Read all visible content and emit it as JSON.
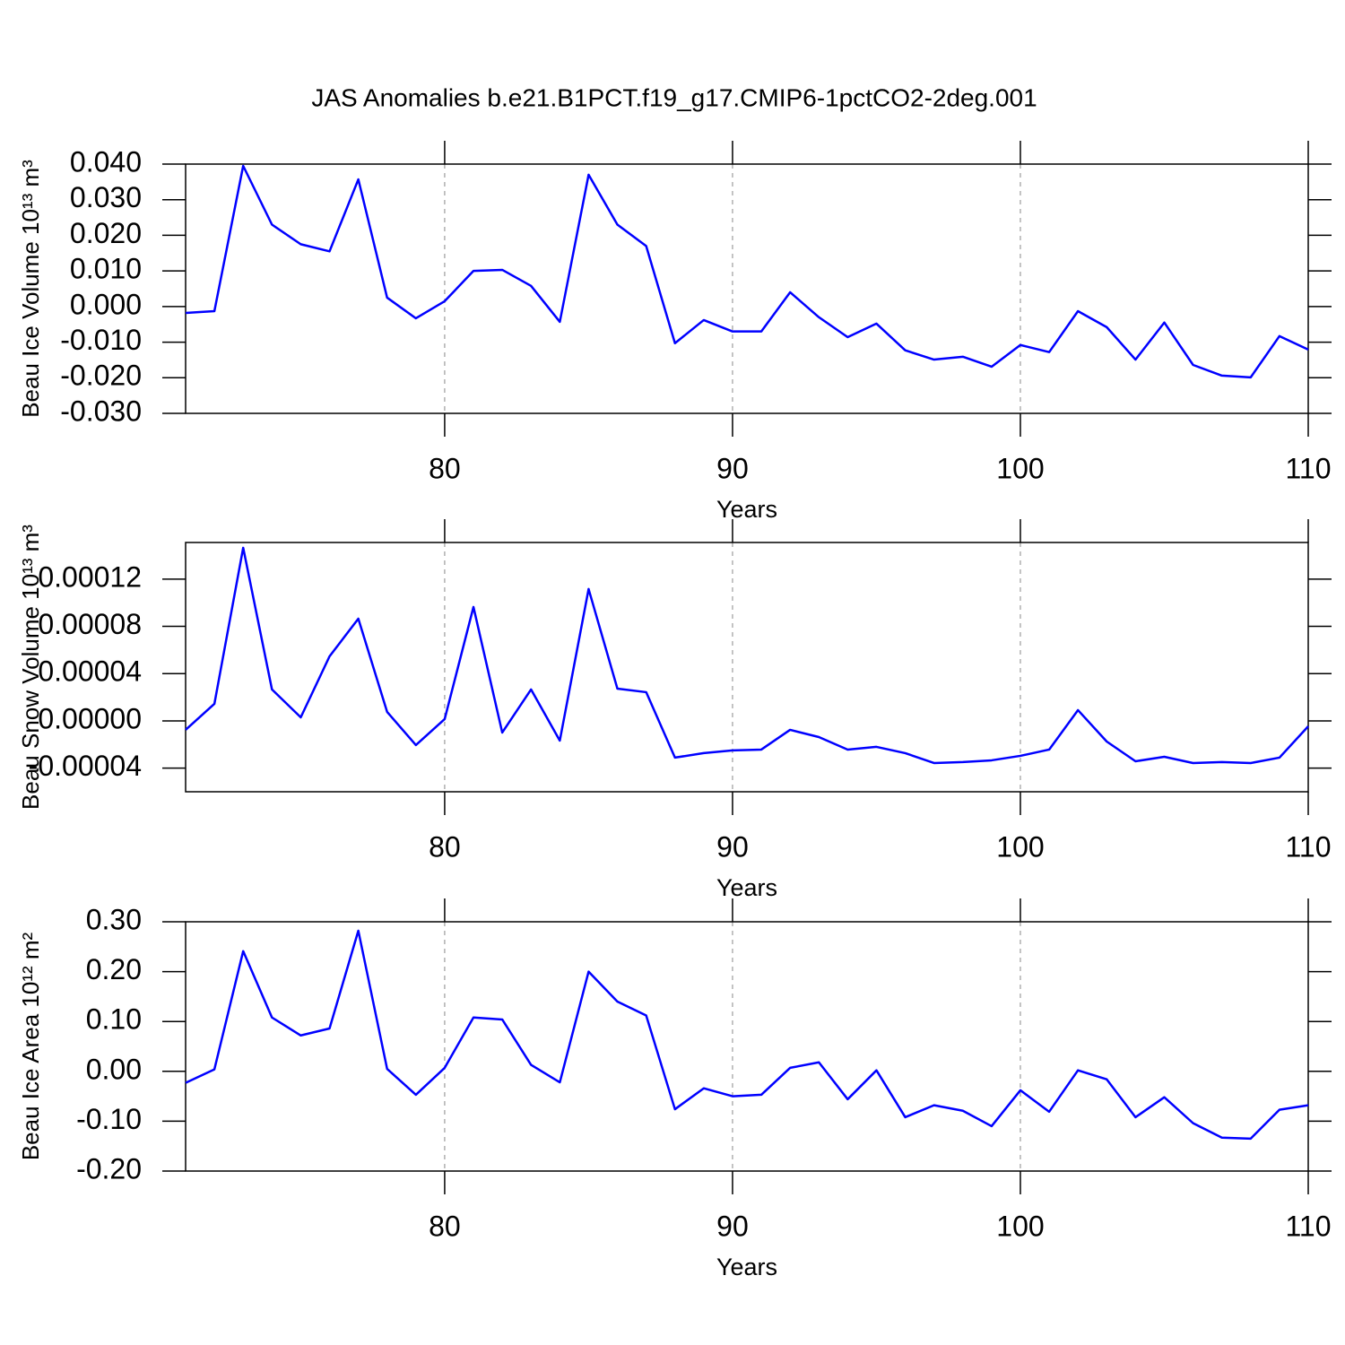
{
  "chart_data": [
    {
      "type": "line",
      "title": "JAS Anomalies b.e21.B1PCT.f19_g17.CMIP6-1pctCO2-2deg.001",
      "xlabel": "Years",
      "ylabel": "Beau Ice Volume 10¹³ m³",
      "color": "#0000ff",
      "grid": true,
      "x": [
        71,
        72,
        73,
        74,
        75,
        76,
        77,
        78,
        79,
        80,
        81,
        82,
        83,
        84,
        85,
        86,
        87,
        88,
        89,
        90,
        91,
        92,
        93,
        94,
        95,
        96,
        97,
        98,
        99,
        100,
        101,
        102,
        103,
        104,
        105,
        106,
        107,
        108,
        109,
        110
      ],
      "values": [
        -0.0018,
        -0.0013,
        0.0395,
        0.023,
        0.0175,
        0.0155,
        0.0357,
        0.0025,
        -0.0033,
        0.0015,
        0.01,
        0.0103,
        0.0058,
        -0.0043,
        0.037,
        0.023,
        0.017,
        -0.0103,
        -0.0038,
        -0.007,
        -0.007,
        0.004,
        -0.003,
        -0.0086,
        -0.0048,
        -0.0123,
        -0.0149,
        -0.0141,
        -0.0169,
        -0.0108,
        -0.0128,
        -0.0013,
        -0.0058,
        -0.0149,
        -0.0045,
        -0.0164,
        -0.0194,
        -0.0199,
        -0.0083,
        -0.0121
      ],
      "xlim": [
        71,
        110
      ],
      "xticks": [
        80,
        90,
        100,
        110
      ],
      "ylim": [
        -0.03,
        0.04
      ],
      "yticks": [
        {
          "value": -0.03,
          "label": "-0.030"
        },
        {
          "value": -0.02,
          "label": "-0.020"
        },
        {
          "value": -0.01,
          "label": "-0.010"
        },
        {
          "value": 0,
          "label": "0.000"
        },
        {
          "value": 0.01,
          "label": "0.010"
        },
        {
          "value": 0.02,
          "label": "0.020"
        },
        {
          "value": 0.03,
          "label": "0.030"
        },
        {
          "value": 0.04,
          "label": "0.040"
        }
      ]
    },
    {
      "type": "line",
      "xlabel": "Years",
      "ylabel": "Beau Snow Volume 10¹³ m³",
      "color": "#0000ff",
      "grid": true,
      "x": [
        71,
        72,
        73,
        74,
        75,
        76,
        77,
        78,
        79,
        80,
        81,
        82,
        83,
        84,
        85,
        86,
        87,
        88,
        89,
        90,
        91,
        92,
        93,
        94,
        95,
        96,
        97,
        98,
        99,
        100,
        101,
        102,
        103,
        104,
        105,
        106,
        107,
        108,
        109,
        110
      ],
      "values": [
        -7.6e-06,
        1.44e-05,
        0.0001465,
        2.66e-05,
        3e-06,
        5.46e-05,
        8.65e-05,
        7.6e-06,
        -2.05e-05,
        1.5e-06,
        9.64e-05,
        -9.9e-06,
        2.66e-05,
        -1.67e-05,
        0.0001116,
        2.73e-05,
        2.43e-05,
        -3.11e-05,
        -2.73e-05,
        -2.5e-05,
        -2.43e-05,
        -7.6e-06,
        -1.37e-05,
        -2.43e-05,
        -2.2e-05,
        -2.73e-05,
        -3.57e-05,
        -3.49e-05,
        -3.34e-05,
        -2.96e-05,
        -2.43e-05,
        9.1e-06,
        -1.75e-05,
        -3.42e-05,
        -3.04e-05,
        -3.57e-05,
        -3.49e-05,
        -3.57e-05,
        -3.11e-05,
        -4.6e-06
      ],
      "xlim": [
        71,
        110
      ],
      "xticks": [
        80,
        90,
        100,
        110
      ],
      "ylim": [
        -6e-05,
        0.000151
      ],
      "yticks": [
        {
          "value": -4e-05,
          "label": "-0.00004"
        },
        {
          "value": 0,
          "label": "0.00000"
        },
        {
          "value": 4e-05,
          "label": "0.00004"
        },
        {
          "value": 8e-05,
          "label": "0.00008"
        },
        {
          "value": 0.00012,
          "label": "0.00012"
        }
      ]
    },
    {
      "type": "line",
      "xlabel": "Years",
      "ylabel": "Beau Ice Area 10¹² m²",
      "color": "#0000ff",
      "grid": true,
      "x": [
        71,
        72,
        73,
        74,
        75,
        76,
        77,
        78,
        79,
        80,
        81,
        82,
        83,
        84,
        85,
        86,
        87,
        88,
        89,
        90,
        91,
        92,
        93,
        94,
        95,
        96,
        97,
        98,
        99,
        100,
        101,
        102,
        103,
        104,
        105,
        106,
        107,
        108,
        109,
        110
      ],
      "values": [
        -0.023,
        0.004,
        0.241,
        0.108,
        0.072,
        0.086,
        0.282,
        0.005,
        -0.047,
        0.007,
        0.108,
        0.104,
        0.013,
        -0.022,
        0.2,
        0.14,
        0.112,
        -0.076,
        -0.034,
        -0.05,
        -0.047,
        0.007,
        0.018,
        -0.056,
        0.002,
        -0.092,
        -0.068,
        -0.079,
        -0.11,
        -0.038,
        -0.081,
        0.002,
        -0.016,
        -0.092,
        -0.052,
        -0.104,
        -0.133,
        -0.135,
        -0.077,
        -0.068
      ],
      "xlim": [
        71,
        110
      ],
      "xticks": [
        80,
        90,
        100,
        110
      ],
      "ylim": [
        -0.2,
        0.3
      ],
      "yticks": [
        {
          "value": -0.2,
          "label": "-0.20"
        },
        {
          "value": -0.1,
          "label": "-0.10"
        },
        {
          "value": 0,
          "label": "0.00"
        },
        {
          "value": 0.1,
          "label": "0.10"
        },
        {
          "value": 0.2,
          "label": "0.20"
        },
        {
          "value": 0.3,
          "label": "0.30"
        }
      ]
    }
  ]
}
